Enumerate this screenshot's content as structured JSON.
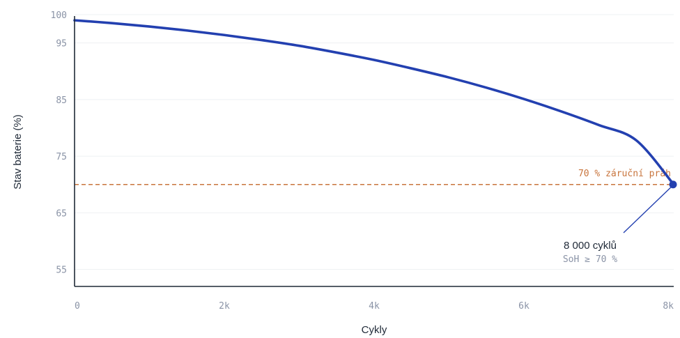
{
  "chart_data": {
    "type": "line",
    "xlabel": "Cykly",
    "ylabel": "Stav baterie (%)",
    "xlim": [
      0,
      8000
    ],
    "ylim": [
      52,
      100
    ],
    "x_ticks": [
      0,
      2000,
      4000,
      6000,
      8000
    ],
    "x_tick_labels": [
      "0",
      "2k",
      "4k",
      "6k",
      "8k"
    ],
    "y_ticks": [
      55,
      65,
      75,
      85,
      95,
      100
    ],
    "y_tick_labels": [
      "55",
      "65",
      "75",
      "85",
      "95",
      "100"
    ],
    "grid": "horizontal",
    "series": [
      {
        "color": "#2340b0",
        "x": [
          0,
          500,
          1000,
          1500,
          2000,
          2500,
          3000,
          3500,
          4000,
          4500,
          5000,
          5500,
          6000,
          6500,
          7000,
          7500,
          8000
        ],
        "y": [
          99.0,
          98.5,
          97.9,
          97.2,
          96.4,
          95.5,
          94.5,
          93.3,
          92.0,
          90.5,
          88.9,
          87.1,
          85.1,
          82.9,
          80.5,
          77.8,
          70.0
        ]
      }
    ],
    "threshold": {
      "y": 70,
      "label": "70 % záruční práh",
      "color": "#c8743c"
    },
    "endpoint": {
      "x": 8000,
      "y": 70,
      "color": "#2340b0"
    },
    "annotation": {
      "title": "8 000 cyklů",
      "subtitle": "SoH ≥ 70 %"
    }
  }
}
